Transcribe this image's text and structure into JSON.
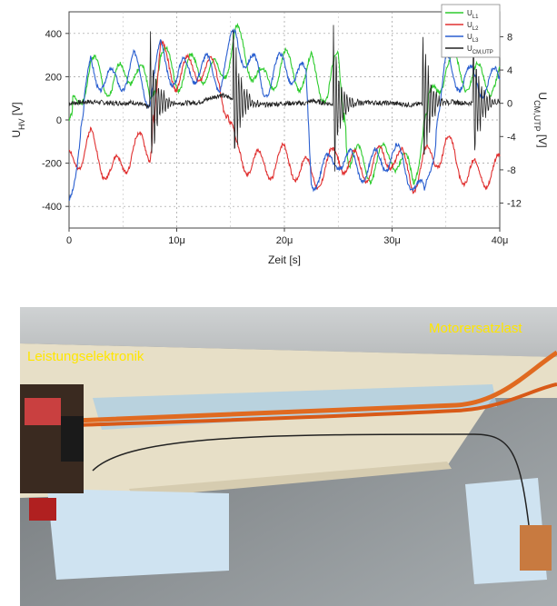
{
  "chart_data": {
    "type": "line",
    "xlabel": "Zeit [s]",
    "ylabel_left": "U_HV [V]",
    "ylabel_right": "U_CM,UTP [V]",
    "xlim": [
      0,
      40
    ],
    "x_unit": "μ",
    "ylim_left": [
      -500,
      500
    ],
    "ylim_right": [
      -15,
      11
    ],
    "x_ticks": [
      "0",
      "10μ",
      "20μ",
      "30μ",
      "40μ"
    ],
    "y_ticks_left": [
      "400",
      "200",
      "0",
      "-200",
      "-400"
    ],
    "y_ticks_right": [
      "8",
      "4",
      "0",
      "-4",
      "-8",
      "-12"
    ],
    "grid": true,
    "legend_position": "top-right",
    "series": [
      {
        "name": "U_L1",
        "color": "#2ecc2e",
        "axis": "left"
      },
      {
        "name": "U_L2",
        "color": "#e03030",
        "axis": "left"
      },
      {
        "name": "U_L3",
        "color": "#2a5fd0",
        "axis": "left"
      },
      {
        "name": "U_CM,UTP",
        "color": "#222222",
        "axis": "right"
      }
    ],
    "sample_x": [
      0,
      2,
      4,
      6,
      7.5,
      8.5,
      10,
      12,
      14,
      15.5,
      18,
      20,
      22,
      22.5,
      24,
      25,
      26,
      28,
      30,
      32,
      33,
      35,
      37,
      40
    ],
    "l1": [
      0,
      240,
      160,
      250,
      120,
      300,
      200,
      250,
      200,
      380,
      160,
      260,
      180,
      240,
      120,
      270,
      -170,
      -220,
      -150,
      -270,
      0,
      260,
      200,
      180
    ],
    "l2": [
      -200,
      -110,
      -260,
      -130,
      -130,
      300,
      200,
      250,
      200,
      -160,
      -220,
      -180,
      -240,
      -260,
      -230,
      -150,
      -210,
      -220,
      -150,
      -270,
      -200,
      -120,
      -260,
      -230
    ],
    "l3": [
      -380,
      240,
      160,
      250,
      120,
      300,
      200,
      250,
      200,
      380,
      160,
      260,
      180,
      -260,
      -230,
      -150,
      -210,
      -220,
      -150,
      -270,
      -380,
      240,
      180,
      170
    ],
    "cm": [
      0,
      0.2,
      0,
      0.1,
      -0.5,
      0.1,
      0,
      0.1,
      1,
      0.5,
      -0.2,
      0,
      0,
      0.3,
      0,
      -0.2,
      0,
      0.1,
      0,
      -0.2,
      0,
      0.2,
      0,
      0.1
    ]
  },
  "photo": {
    "label_left": "Leistungselektronik",
    "label_right": "Motorersatzlast"
  }
}
